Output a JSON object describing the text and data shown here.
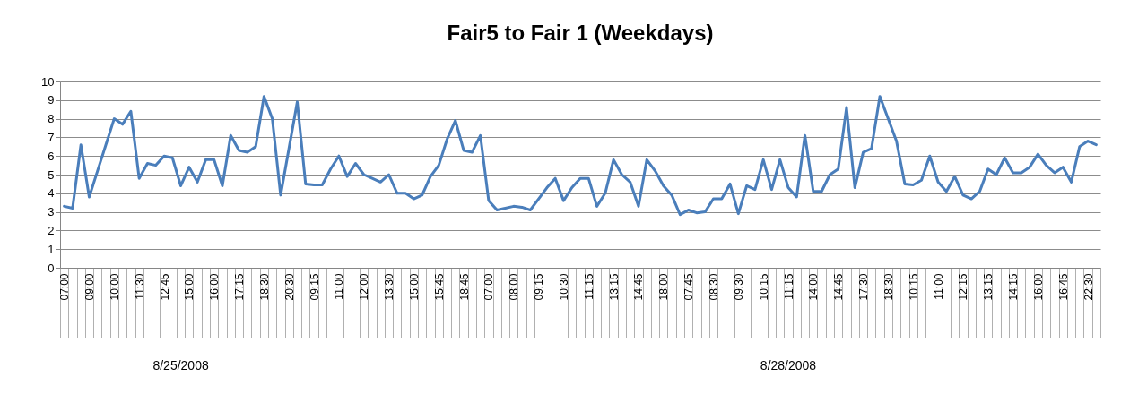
{
  "chart_data": {
    "type": "line",
    "title": "Fair5 to Fair 1 (Weekdays)",
    "categories": [
      "07:00",
      null,
      null,
      "09:00",
      null,
      null,
      "10:00",
      null,
      null,
      "11:30",
      null,
      null,
      "12:45",
      null,
      null,
      "15:00",
      null,
      null,
      "16:00",
      null,
      null,
      "17:15",
      null,
      null,
      "18:30",
      null,
      null,
      "20:30",
      null,
      null,
      "09:15",
      null,
      null,
      "11:00",
      null,
      null,
      "12:00",
      null,
      null,
      "13:30",
      null,
      null,
      "15:00",
      null,
      null,
      "15:45",
      null,
      null,
      "18:45",
      null,
      null,
      "07:00",
      null,
      null,
      "08:00",
      null,
      null,
      "09:15",
      null,
      null,
      "10:30",
      null,
      null,
      "11:15",
      null,
      null,
      "13:15",
      null,
      null,
      "14:45",
      null,
      null,
      "18:00",
      null,
      null,
      "07:45",
      null,
      null,
      "08:30",
      null,
      null,
      "09:30",
      null,
      null,
      "10:15",
      null,
      null,
      "11:15",
      null,
      null,
      "14:00",
      null,
      null,
      "14:45",
      null,
      null,
      "17:30",
      null,
      null,
      "18:30",
      null,
      null,
      "10:15",
      null,
      null,
      "11:00",
      null,
      null,
      "12:15",
      null,
      null,
      "13:15",
      null,
      null,
      "14:15",
      null,
      null,
      "16:00",
      null,
      null,
      "16:45",
      null,
      null,
      "22:30",
      null
    ],
    "series": [
      {
        "color": "#4a7ebb",
        "values": [
          3.3,
          3.2,
          6.6,
          3.8,
          5.2,
          6.6,
          8.0,
          7.7,
          8.4,
          4.8,
          5.6,
          5.5,
          6.0,
          5.9,
          4.4,
          5.4,
          4.6,
          5.8,
          5.8,
          4.4,
          7.1,
          6.3,
          6.2,
          6.5,
          9.2,
          8.0,
          3.9,
          6.4,
          8.9,
          4.5,
          4.45,
          4.45,
          5.3,
          6.0,
          4.9,
          5.6,
          5.0,
          4.8,
          4.6,
          5.0,
          4.0,
          4.0,
          3.7,
          3.9,
          4.9,
          5.5,
          6.9,
          7.9,
          6.3,
          6.2,
          7.1,
          3.6,
          3.1,
          3.2,
          3.3,
          3.25,
          3.1,
          3.7,
          4.3,
          4.8,
          3.6,
          4.3,
          4.8,
          4.8,
          3.3,
          4.0,
          5.8,
          5.0,
          4.6,
          3.3,
          5.8,
          5.2,
          4.4,
          3.9,
          2.85,
          3.1,
          2.95,
          3.0,
          3.7,
          3.7,
          4.5,
          2.9,
          4.4,
          4.2,
          5.8,
          4.2,
          5.8,
          4.3,
          3.8,
          7.1,
          4.1,
          4.1,
          5.0,
          5.3,
          8.6,
          4.3,
          6.2,
          6.4,
          9.2,
          8.0,
          6.8,
          4.5,
          4.45,
          4.7,
          6.0,
          4.6,
          4.1,
          4.9,
          3.9,
          3.7,
          4.1,
          5.3,
          5.0,
          5.9,
          5.1,
          5.1,
          5.4,
          6.1,
          5.5,
          5.1,
          5.4,
          4.6,
          6.5,
          6.8,
          6.6
        ]
      }
    ],
    "ylim": [
      0,
      10
    ],
    "yticks": [
      0,
      1,
      2,
      3,
      4,
      5,
      6,
      7,
      8,
      9,
      10
    ],
    "grid": "y",
    "marker": "none",
    "line_style": "solid",
    "annotations": [
      "8/25/2008",
      "8/28/2008"
    ]
  }
}
